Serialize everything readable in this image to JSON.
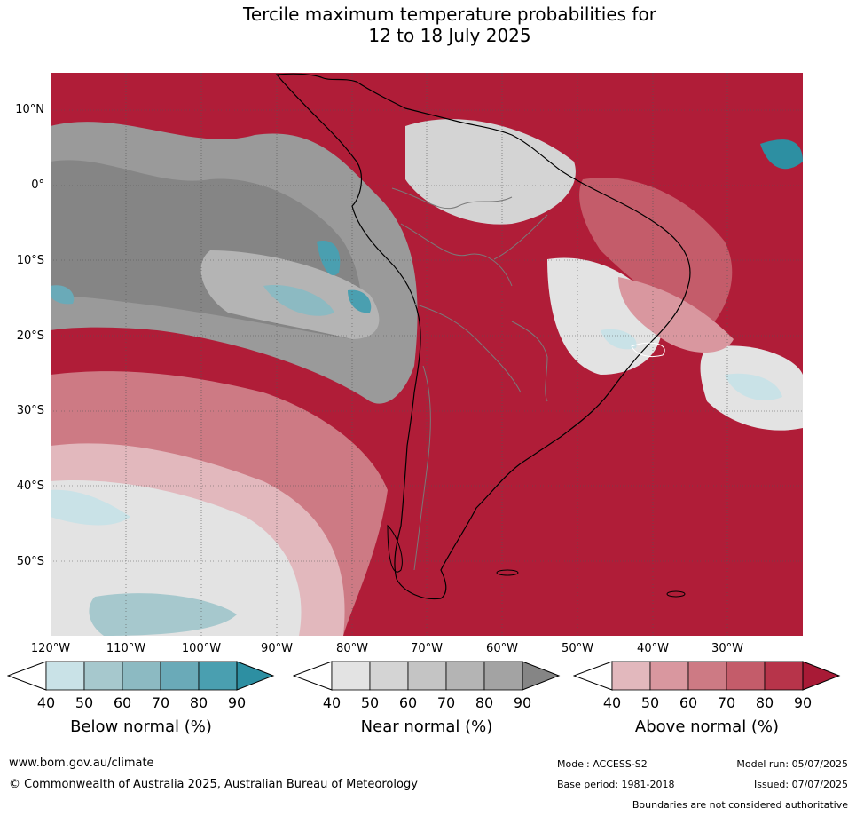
{
  "title": {
    "line1": "Tercile maximum temperature probabilities for",
    "line2": "12 to 18 July 2025"
  },
  "latitudes": [
    "10°N",
    "0°",
    "10°S",
    "20°S",
    "30°S",
    "40°S",
    "50°S"
  ],
  "longitudes": [
    "120°W",
    "110°W",
    "100°W",
    "90°W",
    "80°W",
    "70°W",
    "60°W",
    "50°W",
    "40°W",
    "30°W"
  ],
  "legends": [
    {
      "label": "Below normal (%)",
      "ticks": [
        "40",
        "50",
        "60",
        "70",
        "80",
        "90"
      ],
      "colors": [
        "#c9e2e7",
        "#a6c8cd",
        "#8cbac2",
        "#6aaab8",
        "#4a9fb0",
        "#2d8fa2"
      ]
    },
    {
      "label": "Near normal (%)",
      "ticks": [
        "40",
        "50",
        "60",
        "70",
        "80",
        "90"
      ],
      "colors": [
        "#e3e3e3",
        "#d4d4d4",
        "#c4c4c4",
        "#b4b4b4",
        "#a3a3a3",
        "#858585"
      ]
    },
    {
      "label": "Above normal (%)",
      "ticks": [
        "40",
        "50",
        "60",
        "70",
        "80",
        "90"
      ],
      "colors": [
        "#e2b8bd",
        "#d9979f",
        "#cd7a84",
        "#c45c6a",
        "#b7344a",
        "#a81a36"
      ]
    }
  ],
  "footer": {
    "website": "www.bom.gov.au/climate",
    "copyright": "© Commonwealth of Australia 2025, Australian Bureau of Meteorology",
    "model": "Model: ACCESS-S2",
    "base_period": "Base period: 1981-2018",
    "model_run": "Model run: 05/07/2025",
    "issued": "Issued: 07/07/2025",
    "disclaimer": "Boundaries are not considered authoritative"
  }
}
